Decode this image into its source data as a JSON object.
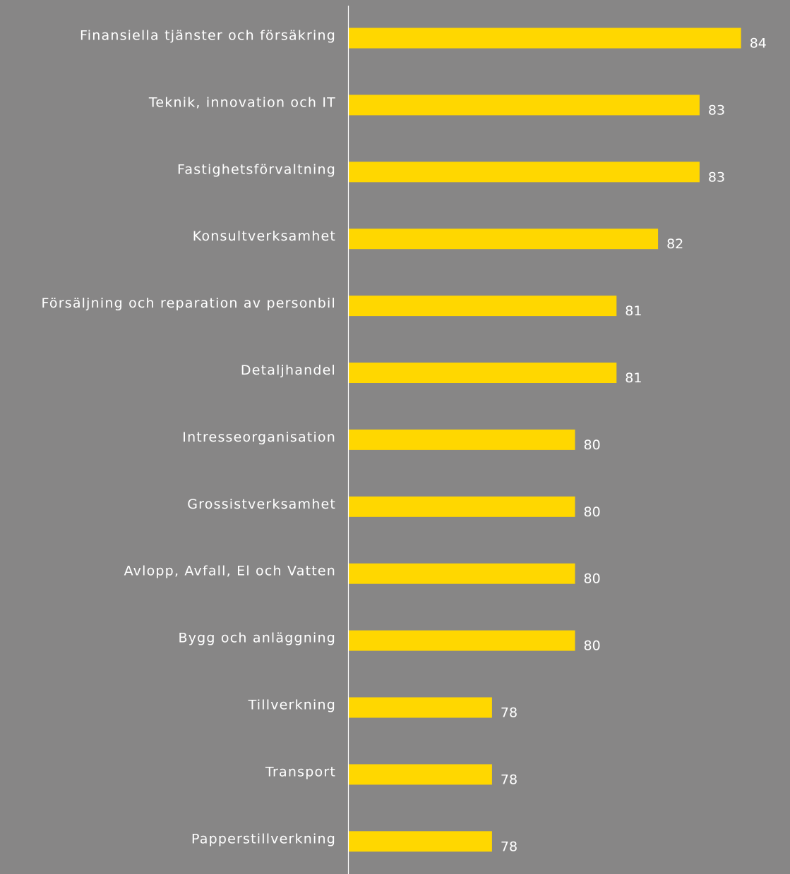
{
  "chart_data": {
    "type": "bar",
    "orientation": "horizontal",
    "categories": [
      "Finansiella tjänster och försäkring",
      "Teknik, innovation och IT",
      "Fastighetsförvaltning",
      "Konsultverksamhet",
      "Försäljning och reparation av personbil",
      "Detaljhandel",
      "Intresseorganisation",
      "Grossistverksamhet",
      "Avlopp, Avfall, El och Vatten",
      "Bygg och anläggning",
      "Tillverkning",
      "Transport",
      "Papperstillverkning"
    ],
    "values": [
      84,
      83,
      83,
      82,
      81,
      81,
      80,
      80,
      80,
      80,
      78,
      78,
      78
    ],
    "title": "",
    "xlabel": "",
    "ylabel": "",
    "legend": "none",
    "grid": false,
    "colors": {
      "background": "#878686",
      "bar": "#FFD700",
      "axis": "#ffffff",
      "text": "#ffffff"
    }
  }
}
